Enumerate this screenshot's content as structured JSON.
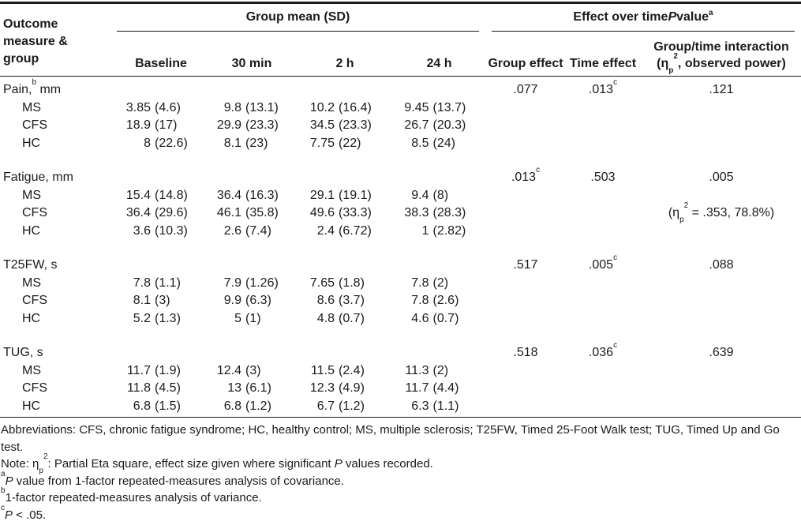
{
  "page": {
    "background": "#ffffff",
    "text_color": "#1b1b1b",
    "rule_color": "#1a1a1a"
  },
  "table": {
    "header": {
      "outcome_lines": [
        "Outcome",
        "measure &",
        "group"
      ],
      "group_mean_spanner": "Group mean (SD)",
      "effect_spanner": "Effect over time *P* value^a^",
      "time_cols": [
        "Baseline",
        "30 min",
        "2 h",
        "24 h"
      ],
      "group_effect_col": "Group effect",
      "time_effect_col": "Time effect",
      "interaction_col_line1": "Group/time interaction",
      "interaction_col_line2": "(η~p~^2^, observed power)"
    },
    "sections": [
      {
        "label": "Pain,^b^ mm",
        "group_effect": ".077",
        "time_effect": ".013^c^",
        "interaction": ".121",
        "rows": [
          {
            "group": "MS",
            "values": [
              "3.85 (4.6)",
              "9.8 (13.1)",
              "10.2 (16.4)",
              "9.45 (13.7)"
            ]
          },
          {
            "group": "CFS",
            "values": [
              "18.9 (17)",
              "29.9 (23.3)",
              "34.5 (23.3)",
              "26.7 (20.3)"
            ]
          },
          {
            "group": "HC",
            "values": [
              "8 (22.6)",
              "8.1 (23)",
              "7.75 (22)",
              "8.5 (24)"
            ]
          }
        ]
      },
      {
        "label": "Fatigue, mm",
        "group_effect": ".013^c^",
        "time_effect": ".503",
        "interaction": ".005",
        "rows": [
          {
            "group": "MS",
            "values": [
              "15.4 (14.8)",
              "36.4 (16.3)",
              "29.1 (19.1)",
              "9.4 (8)"
            ]
          },
          {
            "group": "CFS",
            "values": [
              "36.4 (29.6)",
              "46.1 (35.8)",
              "49.6 (33.3)",
              "38.3 (28.3)"
            ],
            "interaction_note": "(η~p~^2^ = .353, 78.8%)"
          },
          {
            "group": "HC",
            "values": [
              "3.6 (10.3)",
              "2.6 (7.4)",
              "2.4 (6.72)",
              "1 (2.82)"
            ]
          }
        ]
      },
      {
        "label": "T25FW, s",
        "group_effect": ".517",
        "time_effect": ".005^c^",
        "interaction": ".088",
        "rows": [
          {
            "group": "MS",
            "values": [
              "7.8 (1.1)",
              "7.9 (1.26)",
              "7.65 (1.8)",
              "7.8 (2)"
            ]
          },
          {
            "group": "CFS",
            "values": [
              "8.1 (3)",
              "9.9 (6.3)",
              "8.6 (3.7)",
              "7.8 (2.6)"
            ]
          },
          {
            "group": "HC",
            "values": [
              "5.2 (1.3)",
              "5 (1)",
              "4.8 (0.7)",
              "4.6 (0.7)"
            ]
          }
        ]
      },
      {
        "label": "TUG, s",
        "group_effect": ".518",
        "time_effect": ".036^c^",
        "interaction": ".639",
        "rows": [
          {
            "group": "MS",
            "values": [
              "11.7 (1.9)",
              "12.4 (3)",
              "11.5 (2.4)",
              "11.3 (2)"
            ]
          },
          {
            "group": "CFS",
            "values": [
              "11.8 (4.5)",
              "13 (6.1)",
              "12.3 (4.9)",
              "11.7 (4.4)"
            ]
          },
          {
            "group": "HC",
            "values": [
              "6.8 (1.5)",
              "6.8 (1.2)",
              "6.7 (1.2)",
              "6.3 (1.1)"
            ]
          }
        ]
      }
    ]
  },
  "footnotes": [
    "Abbreviations: CFS, chronic fatigue syndrome; HC, healthy control; MS, multiple sclerosis; T25FW, Timed 25-Foot Walk test; TUG, Timed Up and Go test.",
    "Note: η~p~^2^: Partial Eta square, effect size given where significant *P* values recorded.",
    "^a^*P* value from 1-factor repeated-measures analysis of covariance.",
    "^b^1-factor repeated-measures analysis of variance.",
    "^c^*P* < .05."
  ]
}
